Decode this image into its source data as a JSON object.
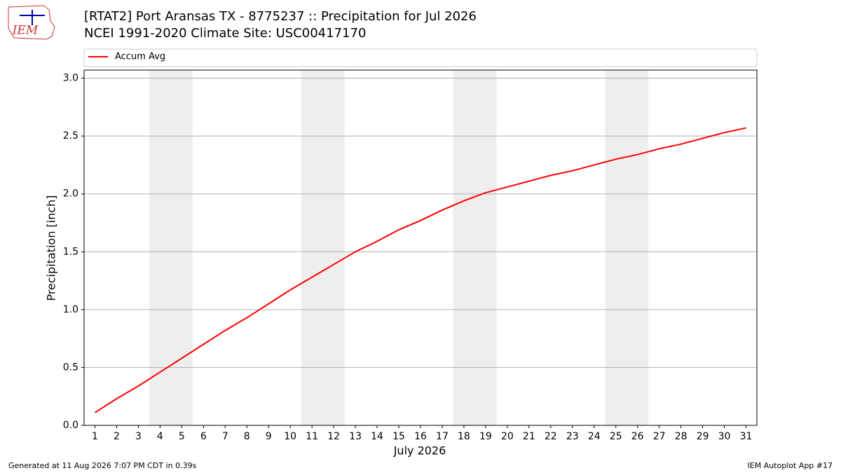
{
  "chart_data": {
    "type": "line",
    "title": "[RTAT2] Port Aransas  TX - 8775237 :: Precipitation for Jul 2026",
    "subtitle": "NCEI 1991-2020 Climate Site: USC00417170",
    "x_label": "July 2026",
    "y_label": "Precipitation [inch]",
    "x": [
      1,
      2,
      3,
      4,
      5,
      6,
      7,
      8,
      9,
      10,
      11,
      12,
      13,
      14,
      15,
      16,
      17,
      18,
      19,
      20,
      21,
      22,
      23,
      24,
      25,
      26,
      27,
      28,
      29,
      30,
      31
    ],
    "series": [
      {
        "name": "Accum Avg",
        "color": "#ff0000",
        "values": [
          0.11,
          0.23,
          0.34,
          0.46,
          0.58,
          0.7,
          0.82,
          0.93,
          1.05,
          1.17,
          1.28,
          1.39,
          1.5,
          1.59,
          1.69,
          1.77,
          1.86,
          1.94,
          2.01,
          2.06,
          2.11,
          2.16,
          2.2,
          2.25,
          2.3,
          2.34,
          2.39,
          2.43,
          2.48,
          2.53,
          2.57
        ]
      }
    ],
    "xlim": [
      0.5,
      31.5
    ],
    "ylim": [
      0,
      3.07
    ],
    "xticks": [
      1,
      2,
      3,
      4,
      5,
      6,
      7,
      8,
      9,
      10,
      11,
      12,
      13,
      14,
      15,
      16,
      17,
      18,
      19,
      20,
      21,
      22,
      23,
      24,
      25,
      26,
      27,
      28,
      29,
      30,
      31
    ],
    "yticks": [
      {
        "value": 0,
        "label": "0.0"
      },
      0.5,
      {
        "value": 1,
        "label": "1.0"
      },
      1.5,
      {
        "value": 2,
        "label": "2.0"
      },
      2.5,
      {
        "value": 3,
        "label": "3.0"
      }
    ],
    "grid": "y",
    "legend": "top",
    "shaded_x_ranges": [
      [
        3.5,
        5.5
      ],
      [
        10.5,
        12.5
      ],
      [
        17.5,
        19.5
      ],
      [
        24.5,
        26.5
      ]
    ],
    "shade_color": "#eeeeee"
  },
  "logo": "IEM",
  "footer": {
    "left": "Generated at 11 Aug 2026 7:07 PM CDT in 0.39s",
    "right": "IEM Autoplot App #17"
  }
}
